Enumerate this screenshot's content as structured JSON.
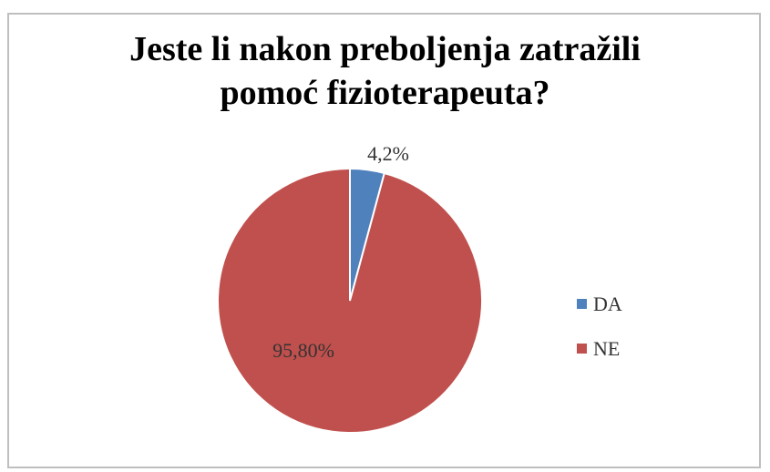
{
  "chart_data": {
    "type": "pie",
    "title_lines": [
      "Jeste li nakon preboljenja zatražili",
      "pomoć fizioterapeuta?"
    ],
    "categories": [
      "DA",
      "NE"
    ],
    "values": [
      4.2,
      95.8
    ],
    "data_labels": [
      "4,2%",
      "95,80%"
    ],
    "colors": [
      "#4f81bd",
      "#c0504d"
    ],
    "legend_position": "right"
  }
}
